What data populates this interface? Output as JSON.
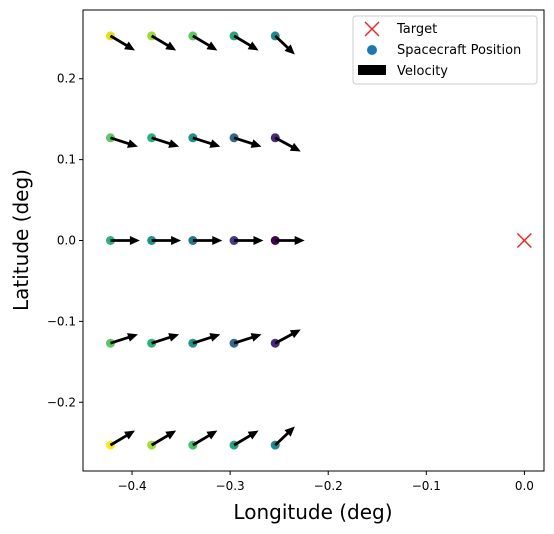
{
  "chart_data": {
    "type": "scatter",
    "title": "",
    "xlabel": "Longitude (deg)",
    "ylabel": "Latitude (deg)",
    "xlim": [
      -0.45,
      0.02
    ],
    "ylim": [
      -0.285,
      0.285
    ],
    "xticks": [
      -0.4,
      -0.3,
      -0.2,
      -0.1,
      0.0
    ],
    "xtick_labels": [
      "−0.4",
      "−0.3",
      "−0.2",
      "−0.1",
      "0.0"
    ],
    "yticks": [
      -0.2,
      -0.1,
      0.0,
      0.1,
      0.2
    ],
    "ytick_labels": [
      "−0.2",
      "−0.1",
      "0.0",
      "0.1",
      "0.2"
    ],
    "grid": false,
    "legend": {
      "placement": "top-right",
      "entries": [
        {
          "label": "Target",
          "marker": "x",
          "color": "#e8251f"
        },
        {
          "label": "Spacecraft Position",
          "marker": "circle",
          "color": "#1f77b4"
        },
        {
          "label": "Velocity",
          "marker": "rect",
          "color": "#000000"
        }
      ]
    },
    "target": {
      "x": 0.0,
      "y": 0.0,
      "color": "#e8251f"
    },
    "positions": {
      "x": [
        -0.422,
        -0.38,
        -0.338,
        -0.296,
        -0.254
      ],
      "y": [
        0.253,
        0.127,
        0.0,
        -0.127,
        -0.253
      ],
      "colors": [
        [
          "#e4e11a",
          "#9ed93a",
          "#5ec962",
          "#2aa579",
          "#1f8a8c"
        ],
        [
          "#5ec962",
          "#2db27d",
          "#21918c",
          "#31688e",
          "#482878"
        ],
        [
          "#2db27d",
          "#21918c",
          "#1f7a8c",
          "#443983",
          "#440154"
        ],
        [
          "#5ec962",
          "#2db27d",
          "#21918c",
          "#31688e",
          "#482878"
        ],
        [
          "#fde725",
          "#a5db36",
          "#48c16e",
          "#25a584",
          "#1f8a8c"
        ]
      ]
    },
    "velocity": {
      "u": [
        [
          0.025,
          0.025,
          0.025,
          0.025,
          0.02
        ],
        [
          0.028,
          0.028,
          0.028,
          0.028,
          0.026
        ],
        [
          0.03,
          0.03,
          0.03,
          0.03,
          0.03
        ],
        [
          0.028,
          0.028,
          0.028,
          0.028,
          0.026
        ],
        [
          0.025,
          0.025,
          0.025,
          0.025,
          0.02
        ]
      ],
      "v": [
        [
          -0.018,
          -0.018,
          -0.018,
          -0.018,
          -0.023
        ],
        [
          -0.011,
          -0.011,
          -0.011,
          -0.011,
          -0.017
        ],
        [
          0.0,
          0.0,
          0.0,
          0.0,
          0.0
        ],
        [
          0.011,
          0.011,
          0.011,
          0.011,
          0.017
        ],
        [
          0.018,
          0.018,
          0.018,
          0.018,
          0.023
        ]
      ],
      "color": "#000000"
    }
  }
}
